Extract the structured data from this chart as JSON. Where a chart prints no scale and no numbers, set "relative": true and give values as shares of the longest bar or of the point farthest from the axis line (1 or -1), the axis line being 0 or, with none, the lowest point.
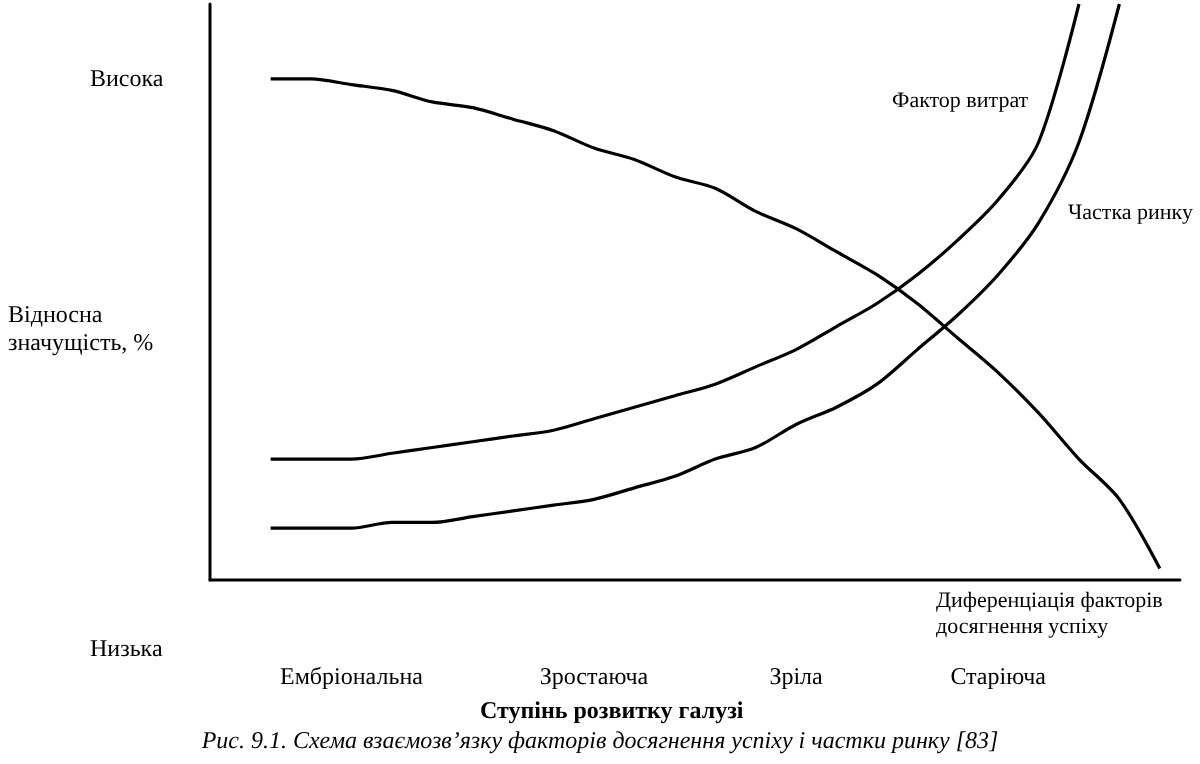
{
  "chart_data": {
    "type": "line",
    "relative": true,
    "ylabel": "Відносна\nзначущість, %",
    "xlabel": "Ступінь розвитку галузі",
    "annotations": [
      "Висока",
      "Низька",
      "Рис. 9.1. Схема взаємозв’язку факторів досягнення успіху і частки ринку [83]"
    ],
    "categories": [
      null,
      null,
      null,
      "Ембріональна",
      null,
      null,
      null,
      null,
      null,
      "Зростаюча",
      null,
      null,
      null,
      null,
      "Зріла",
      null,
      null,
      null,
      null,
      "Старіюча",
      null,
      null,
      null,
      null
    ],
    "grid": false,
    "legend": false,
    "marker": "none",
    "line_style": "solid",
    "series": [
      {
        "name": "Диференціація факторів досягнення успіху",
        "color": "#000000",
        "values": [
          null,
          0.87,
          0.87,
          0.86,
          0.85,
          0.83,
          0.82,
          0.8,
          0.78,
          0.75,
          0.73,
          0.7,
          0.68,
          0.64,
          0.61,
          0.57,
          0.53,
          0.48,
          0.42,
          0.36,
          0.29,
          0.21,
          0.14,
          0.02
        ]
      },
      {
        "name": "Фактор витрат",
        "color": "#000000",
        "values": [
          null,
          0.21,
          0.21,
          0.21,
          0.22,
          0.23,
          0.24,
          0.25,
          0.26,
          0.28,
          0.3,
          0.32,
          0.34,
          0.37,
          0.4,
          0.44,
          0.48,
          0.53,
          0.59,
          0.66,
          0.76,
          1,
          null,
          null
        ]
      },
      {
        "name": "Частка ринку",
        "color": "#000000",
        "values": [
          null,
          0.09,
          0.09,
          0.09,
          0.1,
          0.1,
          0.11,
          0.12,
          0.13,
          0.14,
          0.16,
          0.18,
          0.21,
          0.23,
          0.27,
          0.3,
          0.34,
          0.4,
          0.46,
          0.53,
          0.62,
          0.76,
          1,
          null
        ]
      }
    ]
  }
}
